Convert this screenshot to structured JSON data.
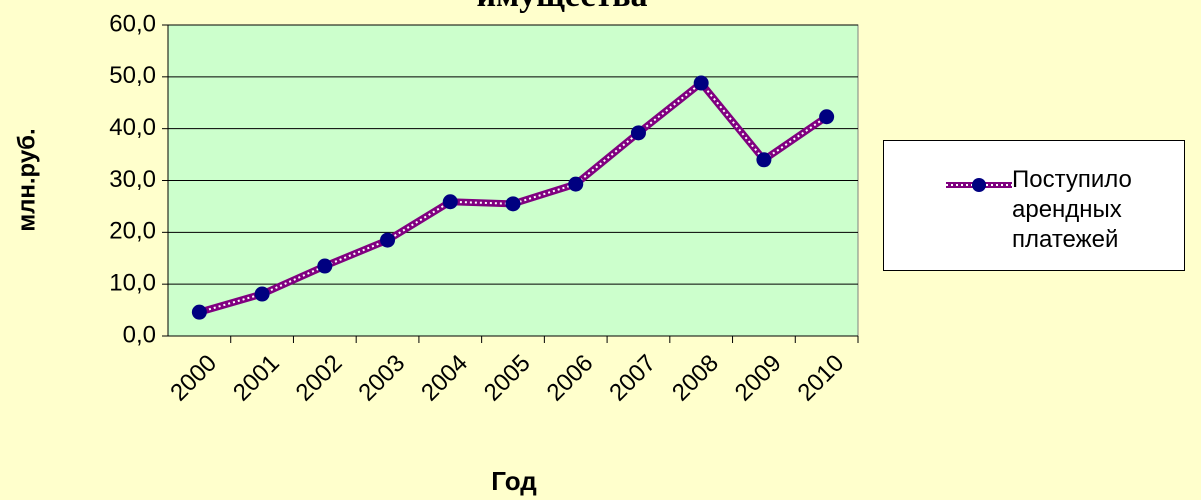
{
  "chart_data": {
    "type": "line",
    "title": "имущества",
    "x_label": "Год",
    "y_label": "млн.руб.",
    "categories": [
      "2000",
      "2001",
      "2002",
      "2003",
      "2004",
      "2005",
      "2006",
      "2007",
      "2008",
      "2009",
      "2010"
    ],
    "series": [
      {
        "name": "Поступило арендных платежей",
        "color": "#800080",
        "marker_color": "#000080",
        "values": [
          4.6,
          8.1,
          13.5,
          18.5,
          25.9,
          25.5,
          29.3,
          39.2,
          48.8,
          34.0,
          42.3
        ]
      }
    ],
    "ylim": [
      0,
      60
    ],
    "yticks": [
      {
        "value": 0,
        "label": "0,0"
      },
      {
        "value": 10,
        "label": "10,0"
      },
      {
        "value": 20,
        "label": "20,0"
      },
      {
        "value": 30,
        "label": "30,0"
      },
      {
        "value": 40,
        "label": "40,0"
      },
      {
        "value": 50,
        "label": "50,0"
      },
      {
        "value": 60,
        "label": "60,0"
      }
    ],
    "grid": true,
    "legend": "right"
  }
}
